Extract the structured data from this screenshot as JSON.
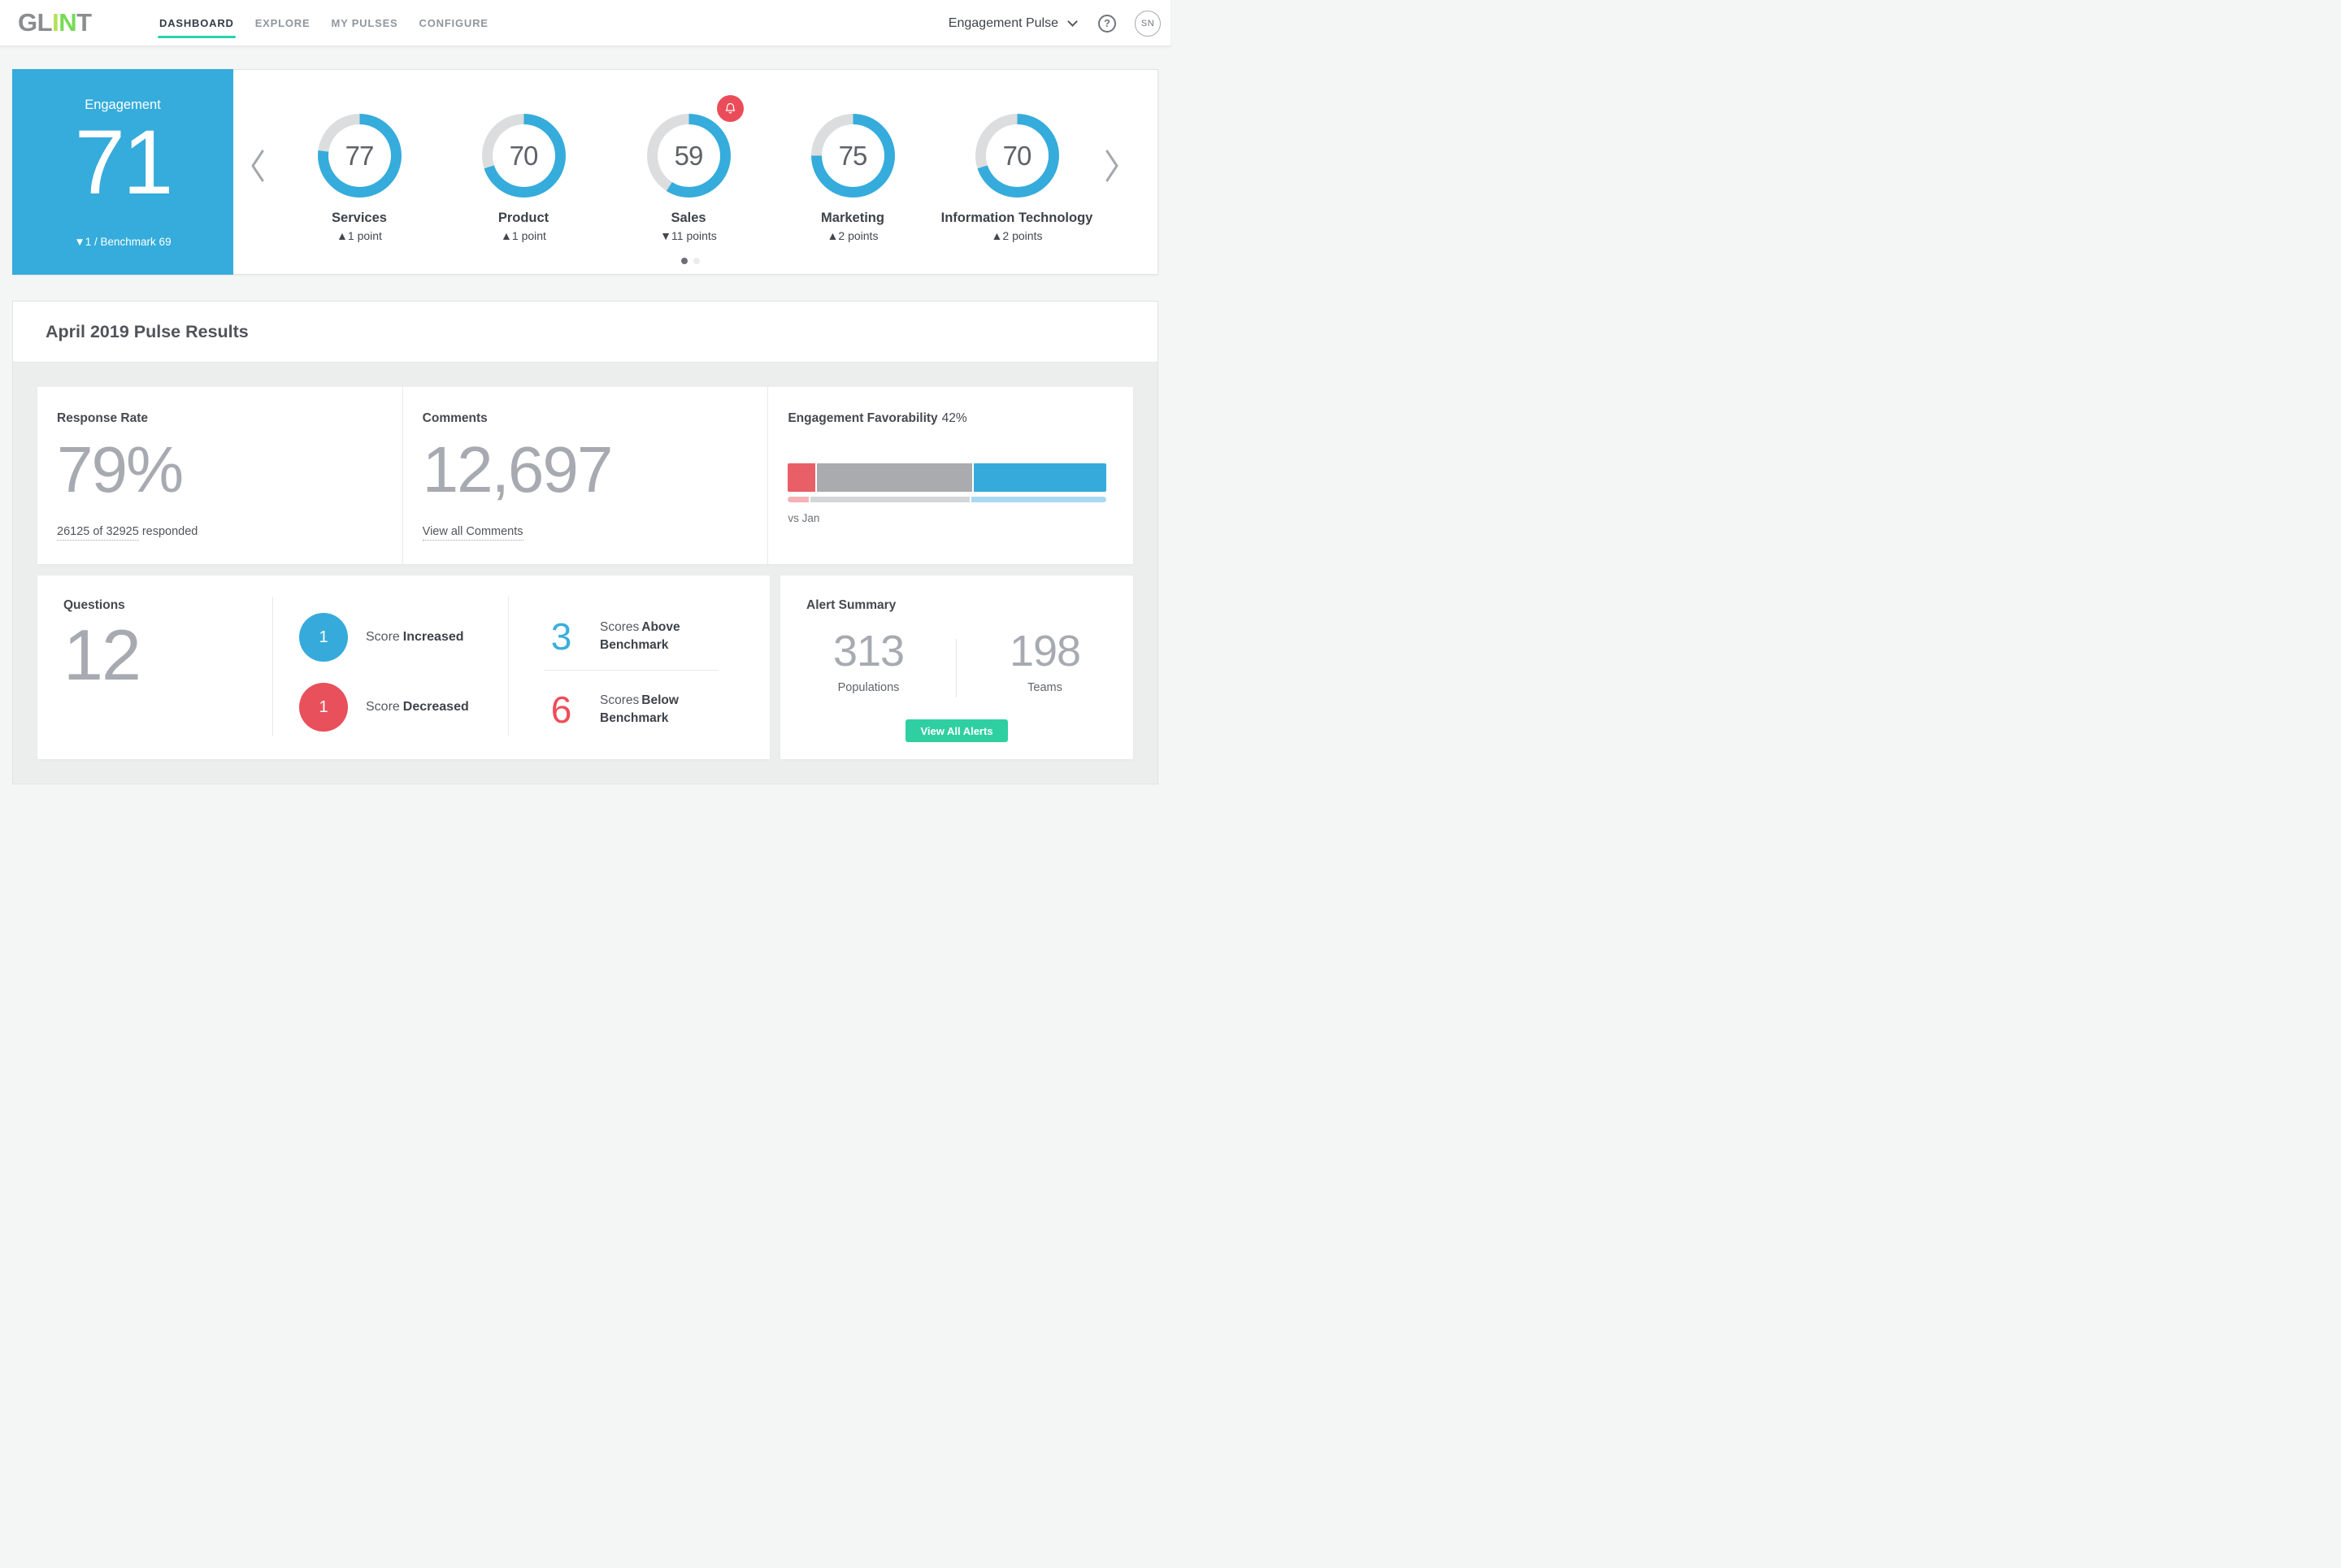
{
  "colors": {
    "accent_blue": "#35ACDB",
    "donut_track": "#DCDDDE",
    "alert_red": "#EA4D59",
    "nav_underline_teal": "#2BD1AC",
    "button_teal": "#30CFA2",
    "decrease_red": "#E8505B"
  },
  "brand": {
    "logo_text": "GLINT",
    "letters": [
      {
        "ch": "G",
        "color": "#8A8D90"
      },
      {
        "ch": "L",
        "color": "#8A8D90"
      },
      {
        "ch": "I",
        "color": "#B2E255"
      },
      {
        "ch": "N",
        "color": "#76DB56"
      },
      {
        "ch": "T",
        "color": "#8A8D90"
      }
    ]
  },
  "header": {
    "nav": [
      {
        "label": "DASHBOARD",
        "active": true
      },
      {
        "label": "EXPLORE",
        "active": false
      },
      {
        "label": "MY PULSES",
        "active": false
      },
      {
        "label": "CONFIGURE",
        "active": false
      }
    ],
    "pulse_selector_label": "Engagement Pulse",
    "help_glyph": "?",
    "avatar_initials": "SN"
  },
  "overview": {
    "engagement_tile": {
      "label": "Engagement",
      "score": "71",
      "note": "▼1 / Benchmark 69"
    },
    "carousel": {
      "items": [
        {
          "name": "Services",
          "score": 77,
          "delta": "▲1 point",
          "alert": false
        },
        {
          "name": "Product",
          "score": 70,
          "delta": "▲1 point",
          "alert": false
        },
        {
          "name": "Sales",
          "score": 59,
          "delta": "▼11 points",
          "alert": true
        },
        {
          "name": "Marketing",
          "score": 75,
          "delta": "▲2 points",
          "alert": false
        },
        {
          "name": "Information Technology",
          "score": 70,
          "delta": "▲2 points",
          "alert": false
        }
      ]
    },
    "pagination_dots": [
      {
        "active": true
      },
      {
        "active": false
      }
    ]
  },
  "results": {
    "title": "April 2019 Pulse Results",
    "response_rate": {
      "heading": "Response Rate",
      "value": "79%",
      "link": "26125 of 32925",
      "suffix": "responded"
    },
    "comments": {
      "heading": "Comments",
      "value": "12,697",
      "link": "View all Comments"
    },
    "favorability": {
      "heading": "Engagement Favorability",
      "value": "42%",
      "compare": "vs Jan",
      "current": [
        {
          "pct": 8.8,
          "color": "#E85F68"
        },
        {
          "pct": 49.2,
          "color": "#A9ABAE"
        },
        {
          "pct": 42.0,
          "color": "#36ABDB"
        }
      ],
      "previous": [
        {
          "pct": 6.7,
          "color": "#F5B2B7"
        },
        {
          "pct": 50.4,
          "color": "#D5D6D8"
        },
        {
          "pct": 42.9,
          "color": "#A9D9F2"
        }
      ]
    },
    "questions": {
      "heading": "Questions",
      "count": "12",
      "legend": [
        {
          "value": "1",
          "color": "#36ABDB",
          "prefix": "Score",
          "bold": "Increased"
        },
        {
          "value": "1",
          "color": "#E8505B",
          "prefix": "Score",
          "bold": "Decreased"
        }
      ],
      "benchmarks": [
        {
          "value": "3",
          "color": "#3AAFDC",
          "prefix": "Scores",
          "bold": "Above Benchmark"
        },
        {
          "value": "6",
          "color": "#EF4D58",
          "prefix": "Scores",
          "bold": "Below Benchmark"
        }
      ]
    },
    "alert_summary": {
      "heading": "Alert Summary",
      "stats": [
        {
          "value": "313",
          "label": "Populations"
        },
        {
          "value": "198",
          "label": "Teams"
        }
      ],
      "button": "View All Alerts"
    }
  }
}
